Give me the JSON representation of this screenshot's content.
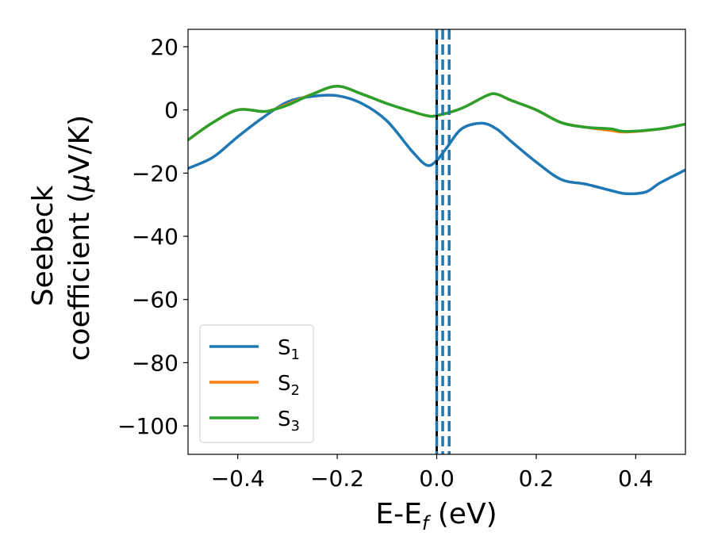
{
  "chart_data": {
    "type": "line",
    "xlabel_main": "E-E",
    "xlabel_sub": "f",
    "xlabel_tail": " (eV)",
    "ylabel_line1": "Seebeck",
    "ylabel_line2_pre": "coefficient  (",
    "ylabel_mu": "μ",
    "ylabel_line2_post": "V/K)",
    "xlim": [
      -0.5,
      0.5
    ],
    "ylim": [
      -109,
      25.5
    ],
    "x_ticks": [
      -0.4,
      -0.2,
      0.0,
      0.2,
      0.4
    ],
    "x_tick_labels": [
      "−0.4",
      "−0.2",
      "0.0",
      "0.2",
      "0.4"
    ],
    "y_ticks": [
      20,
      0,
      -20,
      -40,
      -60,
      -80,
      -100
    ],
    "y_tick_labels": [
      "20",
      "0",
      "−20",
      "−40",
      "−60",
      "−80",
      "−100"
    ],
    "grid": false,
    "legend_position": "lower-left",
    "legend": [
      {
        "base": "S",
        "sub": "1",
        "color": "#1f77b4"
      },
      {
        "base": "S",
        "sub": "2",
        "color": "#ff7f0e"
      },
      {
        "base": "S",
        "sub": "3",
        "color": "#2ca02c"
      }
    ],
    "series": [
      {
        "name": "S1",
        "color": "#1f77b4",
        "x": [
          -0.5,
          -0.45,
          -0.4,
          -0.35,
          -0.3,
          -0.25,
          -0.2,
          -0.15,
          -0.1,
          -0.05,
          -0.02,
          0.0,
          0.02,
          0.05,
          0.09,
          0.12,
          0.15,
          0.2,
          0.25,
          0.3,
          0.35,
          0.38,
          0.42,
          0.45,
          0.5
        ],
        "y": [
          -18.5,
          -15.0,
          -8.5,
          -2.5,
          2.5,
          4.3,
          4.5,
          2.0,
          -3.5,
          -13.0,
          -17.5,
          -16.0,
          -12.0,
          -6.0,
          -4.2,
          -6.0,
          -10.0,
          -16.5,
          -22.0,
          -23.5,
          -25.5,
          -26.5,
          -26.0,
          -23.0,
          -19.0
        ]
      },
      {
        "name": "S2",
        "color": "#ff7f0e",
        "x": [
          -0.5,
          -0.45,
          -0.4,
          -0.35,
          -0.33,
          -0.3,
          -0.25,
          -0.2,
          -0.15,
          -0.1,
          -0.05,
          -0.02,
          0.0,
          0.05,
          0.1,
          0.12,
          0.15,
          0.2,
          0.25,
          0.3,
          0.35,
          0.38,
          0.45,
          0.5
        ],
        "y": [
          -9.5,
          -4.0,
          0.0,
          -0.5,
          0.0,
          1.8,
          5.0,
          7.5,
          5.0,
          2.0,
          -0.5,
          -1.8,
          -1.8,
          0.5,
          4.5,
          5.0,
          3.0,
          0.0,
          -4.0,
          -5.5,
          -6.5,
          -7.0,
          -6.0,
          -4.5
        ]
      },
      {
        "name": "S3",
        "color": "#2ca02c",
        "x": [
          -0.5,
          -0.45,
          -0.4,
          -0.35,
          -0.33,
          -0.3,
          -0.25,
          -0.2,
          -0.15,
          -0.1,
          -0.05,
          -0.02,
          0.0,
          0.05,
          0.1,
          0.12,
          0.15,
          0.2,
          0.25,
          0.3,
          0.35,
          0.38,
          0.45,
          0.5
        ],
        "y": [
          -9.5,
          -4.0,
          0.0,
          -0.5,
          0.0,
          1.5,
          5.0,
          7.5,
          5.0,
          2.0,
          -0.5,
          -1.8,
          -1.8,
          0.5,
          4.5,
          5.0,
          3.0,
          0.0,
          -4.0,
          -5.5,
          -6.0,
          -6.8,
          -6.0,
          -4.5
        ]
      }
    ],
    "vertical_lines": [
      {
        "x": 0.0,
        "style": "solid",
        "color": "#000000"
      },
      {
        "x": 0.0,
        "style": "dashed",
        "color": "#1f77b4"
      },
      {
        "x": 0.012,
        "style": "dashed",
        "color": "#1f77b4"
      },
      {
        "x": 0.025,
        "style": "dashed",
        "color": "#1f77b4"
      }
    ]
  }
}
